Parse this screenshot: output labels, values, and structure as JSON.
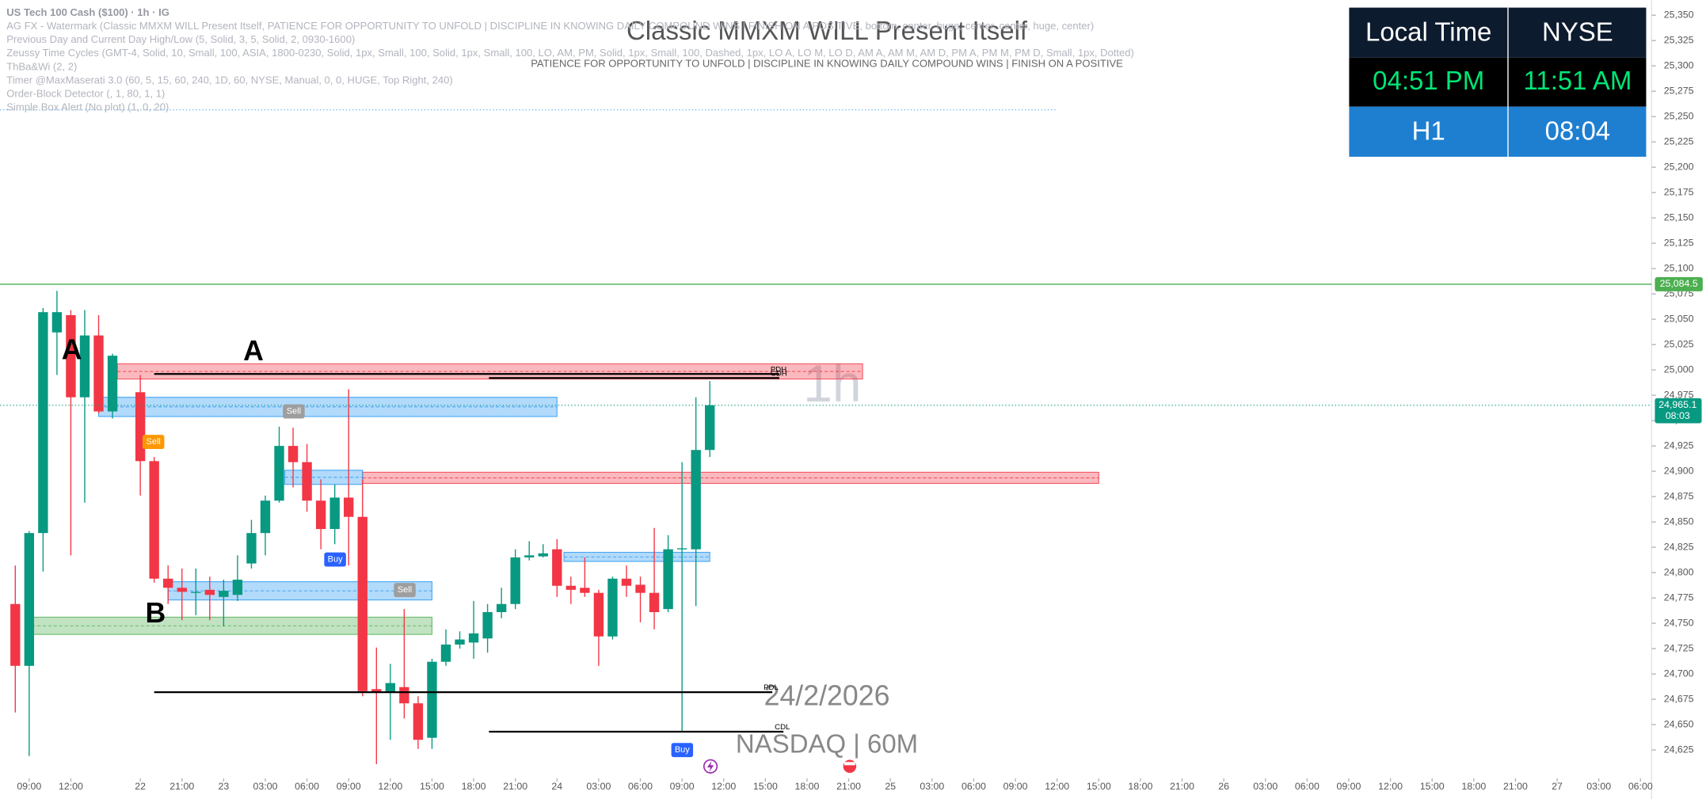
{
  "chart_data": {
    "type": "candlestick",
    "title": "US Tech 100 Cash ($100) · 1h · IG",
    "indicators": [
      "AG FX - Watermark (Classic MMXM WILL Present Itself, PATIENCE FOR OPPORTUNITY TO UNFOLD |  DISCIPLINE IN KNOWING DAILY COMPOUND WINS  |  FINISH ON A POSITIVE, bottom, center, huge, center, center, huge, center)",
      "Previous Day and Current Day High/Low (5, Solid, 3, 5, Solid, 2, 0930-1600)",
      "Zeussy Time Cycles (GMT-4, Solid, 10, Small, 100, ASIA, 1800-0230, Solid, 1px, Small, 100, Solid, 1px, Small, 100, LO, AM, PM, Solid, 1px, Small, 100, Dashed, 1px, LO A, LO M, LO D, AM A, AM M, AM D, PM A, PM M, PM D, Small, 1px, Dotted)",
      "ThBa&Wi (2, 2)",
      "Timer @MaxMaserati 3.0 (60, 5, 15, 60, 240, 1D, 60, NYSE, Manual, 0, 0, HUGE, Top Right, 240)",
      "Order-Block Detector (, 1, 80, 1, 1)",
      "Simple Box Alert (No plot) (1, 0, 20)"
    ],
    "watermark": {
      "title": "Classic MMXM WILL Present Itself",
      "subtitle": "PATIENCE FOR OPPORTUNITY TO UNFOLD |  DISCIPLINE IN KNOWING DAILY COMPOUND WINS  |  FINISH ON A POSITIVE",
      "timeframe": "1h",
      "date": "24/2/2026",
      "exchange": "NASDAQ | 60M"
    },
    "up_color": "#089981",
    "down_color": "#f23645",
    "x": [
      -1,
      0,
      1,
      2,
      3,
      4,
      5,
      6,
      8,
      9,
      10,
      11,
      12,
      13,
      14,
      15,
      16,
      17,
      18,
      19,
      20,
      21,
      22,
      23,
      24,
      25,
      26,
      27,
      28,
      29,
      30,
      31,
      32,
      33,
      34,
      35,
      36,
      37,
      38,
      39,
      40,
      41,
      42,
      43,
      44,
      45,
      46,
      47,
      48,
      49
    ],
    "open": [
      24769,
      24708,
      24839,
      25037,
      25054,
      24973,
      25034,
      24959,
      24978,
      24910,
      24794,
      24785,
      24780,
      24783,
      24776,
      24778,
      24809,
      24839,
      24871,
      24925,
      24909,
      24871,
      24843,
      24874,
      24855,
      24685,
      24682,
      24687,
      24671,
      24637,
      24712,
      24729,
      24731,
      24735,
      24761,
      24769,
      24815,
      24816,
      24823,
      24787,
      24785,
      24780,
      24737,
      24794,
      24788,
      24780,
      24764,
      24823,
      24823,
      24921
    ],
    "high": [
      24807,
      24841,
      25061,
      25078,
      25059,
      25059,
      25054,
      25016,
      24995,
      24914,
      24807,
      24804,
      24804,
      24796,
      24793,
      24817,
      24852,
      24876,
      24944,
      24943,
      24927,
      24892,
      24887,
      24981,
      24892,
      24726,
      24710,
      24764,
      24678,
      24715,
      24744,
      24742,
      24772,
      24769,
      24785,
      24823,
      24831,
      24828,
      24833,
      24796,
      24815,
      24783,
      24796,
      24807,
      24796,
      24844,
      24837,
      24909,
      24973,
      24989
    ],
    "low": [
      24662,
      24619,
      24801,
      24995,
      24817,
      24869,
      24957,
      24952,
      24876,
      24790,
      24769,
      24753,
      24758,
      24753,
      24747,
      24772,
      24804,
      24817,
      24869,
      24884,
      24860,
      24823,
      24828,
      24807,
      24678,
      24611,
      24635,
      24656,
      24626,
      24626,
      24708,
      24725,
      24715,
      24721,
      24755,
      24764,
      24812,
      24815,
      24776,
      24769,
      24776,
      24708,
      24734,
      24776,
      24751,
      24744,
      24761,
      24643,
      24767,
      24914
    ],
    "close": [
      24708,
      24839,
      25057,
      25057,
      24973,
      25034,
      24959,
      25014,
      24910,
      24794,
      24785,
      24781,
      24781,
      24778,
      24782,
      24793,
      24839,
      24871,
      24925,
      24909,
      24871,
      24843,
      24874,
      24855,
      24683,
      24682,
      24691,
      24671,
      24635,
      24712,
      24729,
      24734,
      24740,
      24761,
      24769,
      24815,
      24817,
      24819,
      24787,
      24783,
      24780,
      24737,
      24794,
      24787,
      24780,
      24761,
      24823,
      24824,
      24921,
      24965.1
    ],
    "xlim": [
      -2.1,
      116.8
    ],
    "ylim": [
      24597,
      25365
    ],
    "xticks": [
      {
        "value": 0,
        "label": "09:00"
      },
      {
        "value": 3,
        "label": "12:00"
      },
      {
        "value": 8,
        "label": "22"
      },
      {
        "value": 11,
        "label": "21:00"
      },
      {
        "value": 14,
        "label": "23"
      },
      {
        "value": 17,
        "label": "03:00"
      },
      {
        "value": 20,
        "label": "06:00"
      },
      {
        "value": 23,
        "label": "09:00"
      },
      {
        "value": 26,
        "label": "12:00"
      },
      {
        "value": 29,
        "label": "15:00"
      },
      {
        "value": 32,
        "label": "18:00"
      },
      {
        "value": 35,
        "label": "21:00"
      },
      {
        "value": 38,
        "label": "24"
      },
      {
        "value": 41,
        "label": "03:00"
      },
      {
        "value": 44,
        "label": "06:00"
      },
      {
        "value": 47,
        "label": "09:00"
      },
      {
        "value": 50,
        "label": "12:00"
      },
      {
        "value": 53,
        "label": "15:00"
      },
      {
        "value": 56,
        "label": "18:00"
      },
      {
        "value": 59,
        "label": "21:00"
      },
      {
        "value": 62,
        "label": "25"
      },
      {
        "value": 65,
        "label": "03:00"
      },
      {
        "value": 68,
        "label": "06:00"
      },
      {
        "value": 71,
        "label": "09:00"
      },
      {
        "value": 74,
        "label": "12:00"
      },
      {
        "value": 77,
        "label": "15:00"
      },
      {
        "value": 80,
        "label": "18:00"
      },
      {
        "value": 83,
        "label": "21:00"
      },
      {
        "value": 86,
        "label": "26"
      },
      {
        "value": 89,
        "label": "03:00"
      },
      {
        "value": 92,
        "label": "06:00"
      },
      {
        "value": 95,
        "label": "09:00"
      },
      {
        "value": 98,
        "label": "12:00"
      },
      {
        "value": 101,
        "label": "15:00"
      },
      {
        "value": 104,
        "label": "18:00"
      },
      {
        "value": 107,
        "label": "21:00"
      },
      {
        "value": 110,
        "label": "27"
      },
      {
        "value": 113,
        "label": "03:00"
      },
      {
        "value": 116,
        "label": "06:00"
      }
    ],
    "yticks": [
      {
        "value": 25350,
        "label": "25,350"
      },
      {
        "value": 25325,
        "label": "25,325"
      },
      {
        "value": 25300,
        "label": "25,300"
      },
      {
        "value": 25275,
        "label": "25,275"
      },
      {
        "value": 25250,
        "label": "25,250"
      },
      {
        "value": 25225,
        "label": "25,225"
      },
      {
        "value": 25200,
        "label": "25,200"
      },
      {
        "value": 25175,
        "label": "25,175"
      },
      {
        "value": 25150,
        "label": "25,150"
      },
      {
        "value": 25125,
        "label": "25,125"
      },
      {
        "value": 25100,
        "label": "25,100"
      },
      {
        "value": 25075,
        "label": "25,075"
      },
      {
        "value": 25050,
        "label": "25,050"
      },
      {
        "value": 25025,
        "label": "25,025"
      },
      {
        "value": 25000,
        "label": "25,000"
      },
      {
        "value": 24975,
        "label": "24,975"
      },
      {
        "value": 24950,
        "label": "24,950"
      },
      {
        "value": 24925,
        "label": "24,925"
      },
      {
        "value": 24900,
        "label": "24,900"
      },
      {
        "value": 24875,
        "label": "24,875"
      },
      {
        "value": 24850,
        "label": "24,850"
      },
      {
        "value": 24825,
        "label": "24,825"
      },
      {
        "value": 24800,
        "label": "24,800"
      },
      {
        "value": 24775,
        "label": "24,775"
      },
      {
        "value": 24750,
        "label": "24,750"
      },
      {
        "value": 24725,
        "label": "24,725"
      },
      {
        "value": 24700,
        "label": "24,700"
      },
      {
        "value": 24675,
        "label": "24,675"
      },
      {
        "value": 24650,
        "label": "24,650"
      },
      {
        "value": 24625,
        "label": "24,625"
      }
    ],
    "grid": false,
    "alert_line": {
      "value": 25084.5,
      "label": "25,084.5",
      "color": "#4caf50"
    },
    "price_label": {
      "value": 24965.1,
      "label": "24,965.1",
      "countdown": "08:03"
    },
    "levels": [
      {
        "name": "PDH",
        "value": 24996,
        "start": 9,
        "end": 54
      },
      {
        "name": "CDH",
        "value": 24992,
        "start": 33.1,
        "end": 54
      },
      {
        "name": "PDL",
        "value": 24682,
        "start": 9,
        "end": 53.5
      },
      {
        "name": "CDL",
        "value": 24643,
        "start": 33.1,
        "end": 54.3
      }
    ],
    "zones": [
      {
        "from": 24991,
        "to": 25006,
        "start": 6.35,
        "end": 60,
        "color": "#f23645"
      },
      {
        "from": 24954,
        "to": 24973,
        "start": 5,
        "end": 38,
        "color": "#2196f3"
      },
      {
        "from": 24888,
        "to": 24899,
        "start": 24,
        "end": 77,
        "color": "#f23645"
      },
      {
        "from": 24887,
        "to": 24901,
        "start": 18.4,
        "end": 24,
        "color": "#2196f3"
      },
      {
        "from": 24811,
        "to": 24820,
        "start": 38.5,
        "end": 49,
        "color": "#2196f3"
      },
      {
        "from": 24773,
        "to": 24791,
        "start": 10,
        "end": 29,
        "color": "#2196f3"
      },
      {
        "from": 24739,
        "to": 24756,
        "start": 0.2,
        "end": 29,
        "color": "#4caf50"
      }
    ],
    "annotations": [
      "A",
      "A",
      "B",
      "Sell",
      "Sell",
      "Sell",
      "Buy",
      "Buy"
    ]
  },
  "clock_table": {
    "header": [
      "Local Time",
      "NYSE"
    ],
    "time": [
      "04:51 PM",
      "11:51 AM"
    ],
    "footer": [
      "H1",
      "08:04"
    ]
  }
}
